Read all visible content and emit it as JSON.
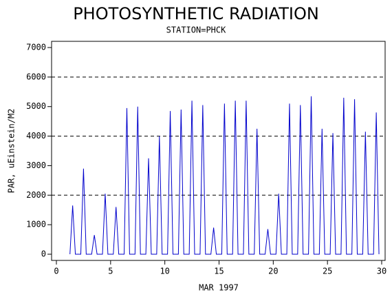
{
  "chart_data": {
    "type": "line",
    "title": "PHOTOSYNTHETIC RADIATION",
    "subtitle": "STATION=PHCK",
    "x_label": "MAR 1997",
    "y_label": "PAR, uEinstein/M2",
    "xlim": [
      0,
      30
    ],
    "xticks": [
      0,
      5,
      10,
      15,
      20,
      25,
      30
    ],
    "ylim": [
      0,
      7000
    ],
    "yticks": [
      0,
      1000,
      2000,
      3000,
      4000,
      5000,
      6000,
      7000
    ],
    "grid_lines": [
      2000,
      4000,
      6000
    ],
    "series": [
      {
        "color": "#0000cc",
        "x": [
          1.25,
          1.5,
          1.75,
          2.25,
          2.5,
          2.75,
          3.25,
          3.5,
          3.75,
          4.25,
          4.5,
          4.75,
          5.25,
          5.5,
          5.75,
          6.25,
          6.5,
          6.75,
          7.25,
          7.5,
          7.75,
          8.25,
          8.5,
          8.75,
          9.25,
          9.5,
          9.75,
          10.25,
          10.5,
          10.75,
          11.25,
          11.5,
          11.75,
          12.25,
          12.5,
          12.75,
          13.25,
          13.5,
          13.75,
          14.25,
          14.5,
          14.75,
          15.25,
          15.5,
          15.75,
          16.25,
          16.5,
          16.75,
          17.25,
          17.5,
          17.75,
          18.25,
          18.5,
          18.75,
          19.25,
          19.5,
          19.75,
          20.25,
          20.5,
          20.75,
          21.25,
          21.5,
          21.75,
          22.25,
          22.5,
          22.75,
          23.25,
          23.5,
          23.75,
          24.25,
          24.5,
          24.75,
          25.25,
          25.5,
          25.75,
          26.25,
          26.5,
          26.75,
          27.25,
          27.5,
          27.75,
          28.25,
          28.5,
          28.75,
          29.25,
          29.5,
          29.75
        ],
        "values": [
          0,
          1650,
          0,
          0,
          2900,
          0,
          0,
          650,
          0,
          0,
          2050,
          0,
          0,
          1600,
          0,
          0,
          4950,
          0,
          0,
          5000,
          0,
          0,
          3250,
          0,
          0,
          4000,
          0,
          0,
          4850,
          0,
          0,
          4900,
          0,
          0,
          5200,
          0,
          0,
          5050,
          0,
          0,
          900,
          0,
          0,
          5100,
          0,
          0,
          5200,
          0,
          0,
          5200,
          0,
          0,
          4250,
          0,
          0,
          850,
          0,
          0,
          2050,
          0,
          0,
          5100,
          0,
          0,
          5050,
          0,
          0,
          5350,
          0,
          0,
          4250,
          0,
          0,
          4100,
          0,
          0,
          5300,
          0,
          0,
          5250,
          0,
          0,
          4150,
          0,
          0,
          4800,
          0
        ]
      }
    ]
  }
}
